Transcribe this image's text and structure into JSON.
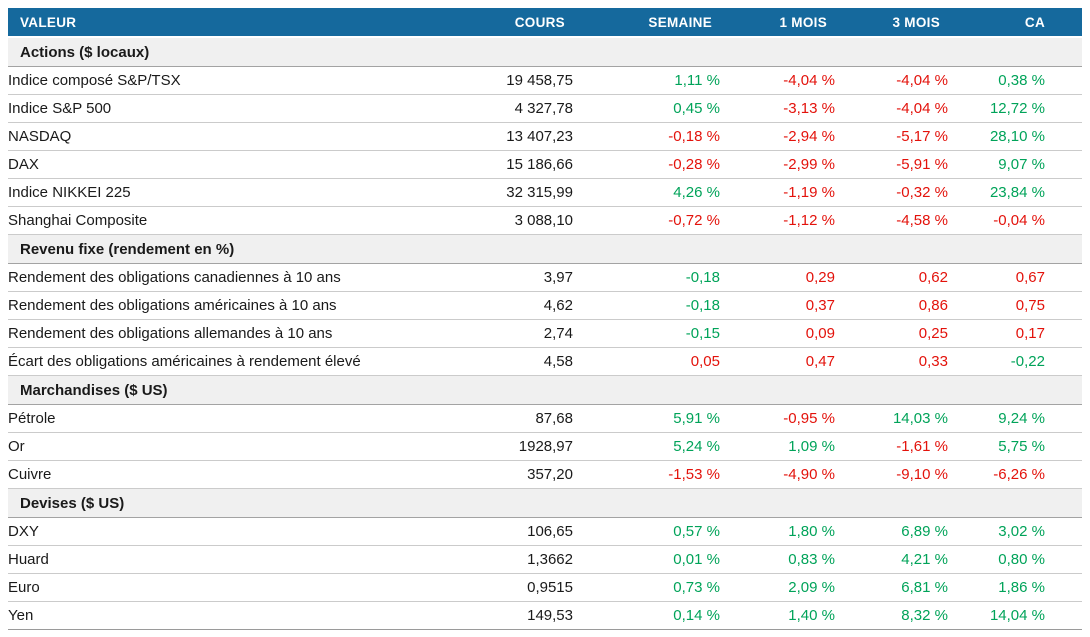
{
  "colors": {
    "header_bg": "#15699D",
    "header_text": "#FFFFFF",
    "section_bg": "#F0F0F0",
    "positive": "#00A359",
    "negative": "#E3120B",
    "row_border": "#CBCBCB",
    "section_border": "#A3A3A3",
    "text": "#1A1A1A"
  },
  "chart_data": {
    "type": "table",
    "columns": [
      "VALEUR",
      "COURS",
      "SEMAINE",
      "1 MOIS",
      "3 MOIS",
      "CA"
    ],
    "sections": [
      {
        "label": "Actions ($ locaux)",
        "rows": [
          {
            "label": "Indice composé S&P/TSX",
            "cours": "19 458,75",
            "changes": [
              {
                "text": "1,11 %",
                "trend": "up"
              },
              {
                "text": "-4,04 %",
                "trend": "down"
              },
              {
                "text": "-4,04 %",
                "trend": "down"
              },
              {
                "text": "0,38 %",
                "trend": "up"
              }
            ]
          },
          {
            "label": "Indice S&P 500",
            "cours": "4 327,78",
            "changes": [
              {
                "text": "0,45 %",
                "trend": "up"
              },
              {
                "text": "-3,13 %",
                "trend": "down"
              },
              {
                "text": "-4,04 %",
                "trend": "down"
              },
              {
                "text": "12,72 %",
                "trend": "up"
              }
            ]
          },
          {
            "label": "NASDAQ",
            "cours": "13 407,23",
            "changes": [
              {
                "text": "-0,18 %",
                "trend": "down"
              },
              {
                "text": "-2,94 %",
                "trend": "down"
              },
              {
                "text": "-5,17 %",
                "trend": "down"
              },
              {
                "text": "28,10 %",
                "trend": "up"
              }
            ]
          },
          {
            "label": "DAX",
            "cours": "15 186,66",
            "changes": [
              {
                "text": "-0,28 %",
                "trend": "down"
              },
              {
                "text": "-2,99 %",
                "trend": "down"
              },
              {
                "text": "-5,91 %",
                "trend": "down"
              },
              {
                "text": "9,07 %",
                "trend": "up"
              }
            ]
          },
          {
            "label": "Indice NIKKEI 225",
            "cours": "32 315,99",
            "changes": [
              {
                "text": "4,26 %",
                "trend": "up"
              },
              {
                "text": "-1,19 %",
                "trend": "down"
              },
              {
                "text": "-0,32 %",
                "trend": "down"
              },
              {
                "text": "23,84 %",
                "trend": "up"
              }
            ]
          },
          {
            "label": "Shanghai Composite",
            "cours": "3 088,10",
            "changes": [
              {
                "text": "-0,72 %",
                "trend": "down"
              },
              {
                "text": "-1,12 %",
                "trend": "down"
              },
              {
                "text": "-4,58 %",
                "trend": "down"
              },
              {
                "text": "-0,04 %",
                "trend": "down"
              }
            ]
          }
        ]
      },
      {
        "label": "Revenu fixe (rendement en %)",
        "rows": [
          {
            "label": "Rendement des obligations canadiennes à 10 ans",
            "cours": "3,97",
            "changes": [
              {
                "text": "-0,18",
                "trend": "up"
              },
              {
                "text": "0,29",
                "trend": "down"
              },
              {
                "text": "0,62",
                "trend": "down"
              },
              {
                "text": "0,67",
                "trend": "down"
              }
            ]
          },
          {
            "label": "Rendement des obligations américaines à 10 ans",
            "cours": "4,62",
            "changes": [
              {
                "text": "-0,18",
                "trend": "up"
              },
              {
                "text": "0,37",
                "trend": "down"
              },
              {
                "text": "0,86",
                "trend": "down"
              },
              {
                "text": "0,75",
                "trend": "down"
              }
            ]
          },
          {
            "label": "Rendement des obligations allemandes à 10 ans",
            "cours": "2,74",
            "changes": [
              {
                "text": "-0,15",
                "trend": "up"
              },
              {
                "text": "0,09",
                "trend": "down"
              },
              {
                "text": "0,25",
                "trend": "down"
              },
              {
                "text": "0,17",
                "trend": "down"
              }
            ]
          },
          {
            "label": "Écart des obligations américaines à rendement élevé",
            "cours": "4,58",
            "changes": [
              {
                "text": "0,05",
                "trend": "down"
              },
              {
                "text": "0,47",
                "trend": "down"
              },
              {
                "text": "0,33",
                "trend": "down"
              },
              {
                "text": "-0,22",
                "trend": "up"
              }
            ]
          }
        ]
      },
      {
        "label": "Marchandises ($ US)",
        "rows": [
          {
            "label": "Pétrole",
            "cours": "87,68",
            "changes": [
              {
                "text": "5,91 %",
                "trend": "up"
              },
              {
                "text": "-0,95 %",
                "trend": "down"
              },
              {
                "text": "14,03 %",
                "trend": "up"
              },
              {
                "text": "9,24 %",
                "trend": "up"
              }
            ]
          },
          {
            "label": "Or",
            "cours": "1928,97",
            "changes": [
              {
                "text": "5,24 %",
                "trend": "up"
              },
              {
                "text": "1,09 %",
                "trend": "up"
              },
              {
                "text": "-1,61 %",
                "trend": "down"
              },
              {
                "text": "5,75 %",
                "trend": "up"
              }
            ]
          },
          {
            "label": "Cuivre",
            "cours": "357,20",
            "changes": [
              {
                "text": "-1,53 %",
                "trend": "down"
              },
              {
                "text": "-4,90 %",
                "trend": "down"
              },
              {
                "text": "-9,10 %",
                "trend": "down"
              },
              {
                "text": "-6,26 %",
                "trend": "down"
              }
            ]
          }
        ]
      },
      {
        "label": "Devises ($ US)",
        "rows": [
          {
            "label": "DXY",
            "cours": "106,65",
            "changes": [
              {
                "text": "0,57 %",
                "trend": "up"
              },
              {
                "text": "1,80 %",
                "trend": "up"
              },
              {
                "text": "6,89 %",
                "trend": "up"
              },
              {
                "text": "3,02 %",
                "trend": "up"
              }
            ]
          },
          {
            "label": "Huard",
            "cours": "1,3662",
            "changes": [
              {
                "text": "0,01 %",
                "trend": "up"
              },
              {
                "text": "0,83 %",
                "trend": "up"
              },
              {
                "text": "4,21 %",
                "trend": "up"
              },
              {
                "text": "0,80 %",
                "trend": "up"
              }
            ]
          },
          {
            "label": "Euro",
            "cours": "0,9515",
            "changes": [
              {
                "text": "0,73 %",
                "trend": "up"
              },
              {
                "text": "2,09 %",
                "trend": "up"
              },
              {
                "text": "6,81 %",
                "trend": "up"
              },
              {
                "text": "1,86 %",
                "trend": "up"
              }
            ]
          },
          {
            "label": "Yen",
            "cours": "149,53",
            "changes": [
              {
                "text": "0,14 %",
                "trend": "up"
              },
              {
                "text": "1,40 %",
                "trend": "up"
              },
              {
                "text": "8,32 %",
                "trend": "up"
              },
              {
                "text": "14,04 %",
                "trend": "up"
              }
            ]
          }
        ]
      }
    ]
  }
}
